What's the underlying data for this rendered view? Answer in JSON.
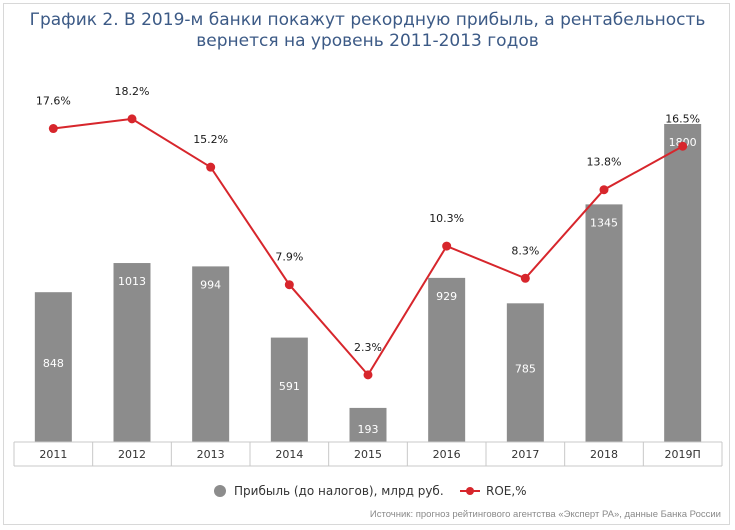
{
  "title": {
    "line1": "График 2. В 2019-м банки покажут рекордную прибыль, а рентабельность",
    "line2": "вернется на уровень 2011-2013 годов"
  },
  "source": "Источник: прогноз рейтингового агентства «Эксперт РА», данные Банка России",
  "chart_data": {
    "type": "bar",
    "categories": [
      "2011",
      "2012",
      "2013",
      "2014",
      "2015",
      "2016",
      "2017",
      "2018",
      "2019П"
    ],
    "series": [
      {
        "name": "Прибыль (до налогов), млрд руб.",
        "type": "bar",
        "values": [
          848,
          1013,
          994,
          591,
          193,
          929,
          785,
          1345,
          1800
        ],
        "labels": [
          "848",
          "1013",
          "994",
          "591",
          "193",
          "929",
          "785",
          "1345",
          "1800"
        ],
        "color": "#8c8c8c"
      },
      {
        "name": "ROE,%",
        "type": "line",
        "values": [
          17.6,
          18.2,
          15.2,
          7.9,
          2.3,
          10.3,
          8.3,
          13.8,
          16.5
        ],
        "labels": [
          "17.6%",
          "18.2%",
          "15.2%",
          "7.9%",
          "2.3%",
          "10.3%",
          "8.3%",
          "13.8%",
          "16.5%"
        ],
        "color": "#d7262c"
      }
    ],
    "legend": {
      "position": "bottom",
      "items": [
        {
          "label": "Прибыль (до налогов), млрд руб.",
          "marker": "circle",
          "color": "#8c8c8c"
        },
        {
          "label": "ROE,%",
          "marker": "line-dot",
          "color": "#d7262c"
        }
      ]
    },
    "grid": false
  }
}
